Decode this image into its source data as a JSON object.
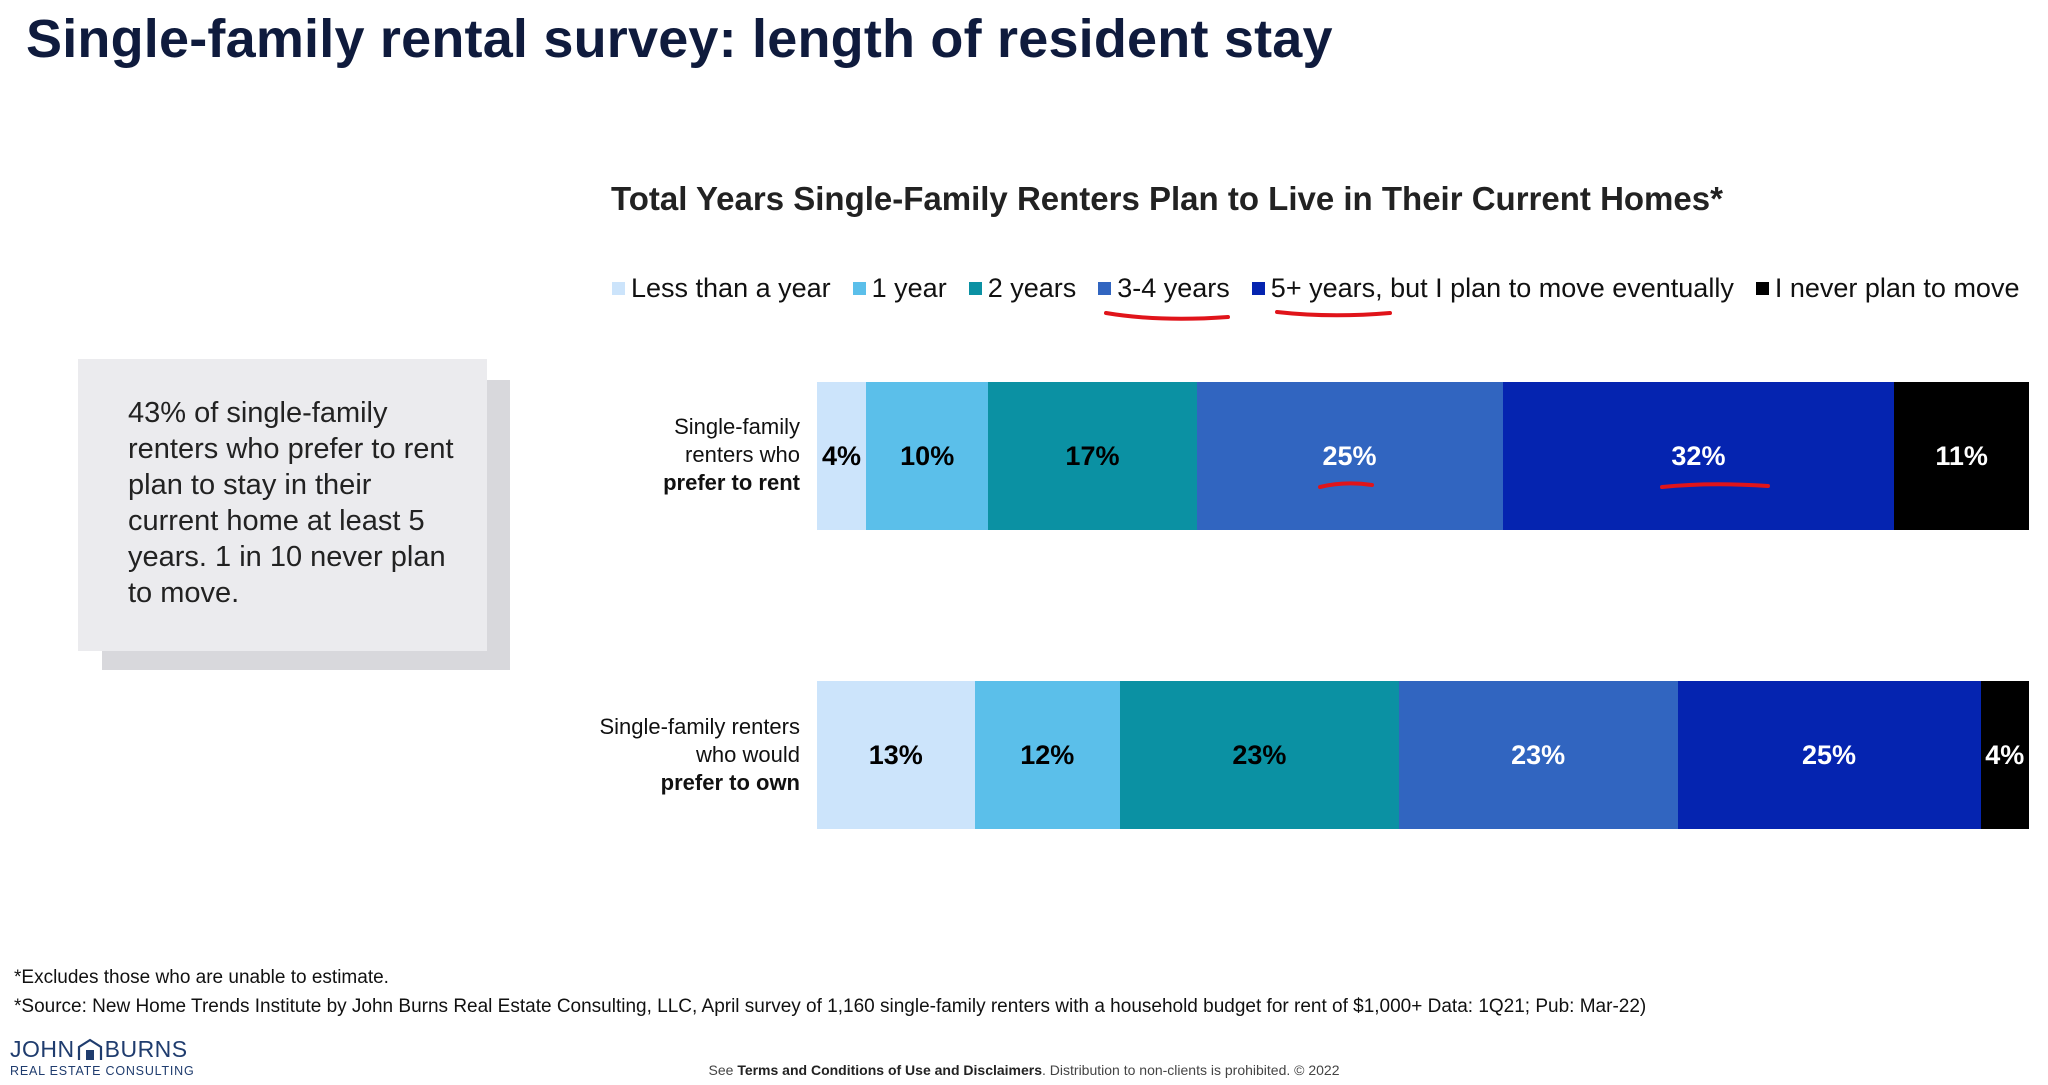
{
  "title": "Single-family rental survey: length of resident stay",
  "callout": {
    "text": "43% of single-family renters who prefer to rent plan to stay in their current home at least 5 years. 1 in 10 never plan to move."
  },
  "colors": {
    "title": "#0f1b3d",
    "annotation": "#e0141a",
    "callout_bg": "#ebebee"
  },
  "chart_data": {
    "type": "bar",
    "orientation": "horizontal",
    "stacked": true,
    "title": "Total Years Single-Family Renters Plan to Live in Their Current Homes*",
    "legend_position": "top",
    "categories": [
      "Single-family renters who prefer to rent",
      "Single-family renters who would prefer to own"
    ],
    "category_labels": [
      {
        "line1": "Single-family",
        "line2": "renters who",
        "bold": "prefer to rent"
      },
      {
        "line1": "Single-family renters",
        "line2": "who would",
        "bold": "prefer to own"
      }
    ],
    "series": [
      {
        "name": "Less than a year",
        "color": "#cce4fb",
        "text_color": "#000000",
        "values": [
          4,
          13
        ],
        "labels": [
          "4%",
          "13%"
        ]
      },
      {
        "name": "1 year",
        "color": "#5bbfea",
        "text_color": "#000000",
        "values": [
          10,
          12
        ],
        "labels": [
          "10%",
          "12%"
        ]
      },
      {
        "name": "2 years",
        "color": "#0b91a3",
        "text_color": "#000000",
        "values": [
          17,
          23
        ],
        "labels": [
          "17%",
          "23%"
        ]
      },
      {
        "name": "3-4 years",
        "color": "#3165c0",
        "text_color": "#ffffff",
        "values": [
          25,
          23
        ],
        "labels": [
          "25%",
          "23%"
        ]
      },
      {
        "name": "5+ years, but I plan to move eventually",
        "color": "#0524b0",
        "text_color": "#ffffff",
        "values": [
          32,
          25
        ],
        "labels": [
          "32%",
          "25%"
        ]
      },
      {
        "name": "I never plan to move",
        "color": "#000000",
        "text_color": "#ffffff",
        "values": [
          11,
          4
        ],
        "labels": [
          "11%",
          "4%"
        ]
      }
    ],
    "xlim": [
      0,
      100
    ]
  },
  "footnotes": {
    "note1": "*Excludes those who are unable to estimate.",
    "note2": "*Source: New Home Trends Institute by John Burns Real Estate Consulting, LLC, April survey of 1,160 single-family renters with a household budget for rent of $1,000+ Data: 1Q21; Pub: Mar-22)"
  },
  "logo": {
    "word1": "JOHN",
    "word2": "BURNS",
    "subtitle": "REAL ESTATE CONSULTING"
  },
  "disclaimer": {
    "prefix": "See ",
    "link": "Terms and Conditions of Use and Disclaimers",
    "suffix": ". Distribution to non-clients is prohibited. © 2022"
  }
}
